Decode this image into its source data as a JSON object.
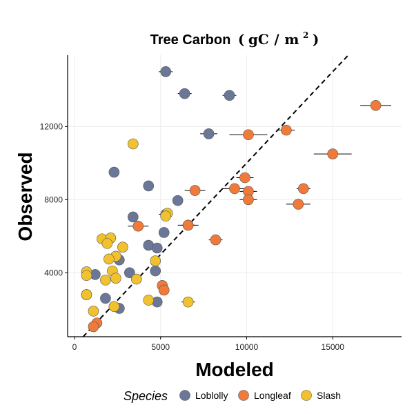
{
  "chart_data": {
    "type": "scatter",
    "title": "Tree Carbon (gC/m2)",
    "title_parts": {
      "main": "Tree Carbon",
      "open": "(",
      "unit": "gC",
      "slash": "/",
      "unit2": "m",
      "exp": "2",
      "close": ")"
    },
    "xlabel": "Modeled",
    "ylabel": "Observed",
    "xlim": [
      -400,
      19000
    ],
    "ylim": [
      500,
      15900
    ],
    "x_ticks": [
      0,
      5000,
      10000,
      15000
    ],
    "y_ticks": [
      4000,
      8000,
      12000
    ],
    "grid": true,
    "legend_title": "Species",
    "legend_position": "bottom",
    "reference_line": {
      "style": "dashed",
      "x": [
        500,
        15900
      ],
      "y": [
        500,
        15900
      ]
    },
    "series": [
      {
        "name": "Loblolly",
        "color": "#6B7799",
        "points": [
          {
            "x": 5300,
            "y": 15000,
            "xerr": 400
          },
          {
            "x": 6400,
            "y": 13800,
            "xerr": 400
          },
          {
            "x": 9000,
            "y": 13700,
            "xerr": 400
          },
          {
            "x": 7800,
            "y": 11600,
            "xerr": 500
          },
          {
            "x": 2300,
            "y": 9500,
            "xerr": 300
          },
          {
            "x": 4300,
            "y": 8750,
            "xerr": 300
          },
          {
            "x": 6000,
            "y": 7950,
            "xerr": 300
          },
          {
            "x": 3400,
            "y": 7050,
            "xerr": 300
          },
          {
            "x": 5300,
            "y": 7200,
            "xerr": 400
          },
          {
            "x": 6600,
            "y": 6600,
            "xerr": 600
          },
          {
            "x": 5200,
            "y": 6200,
            "xerr": 300
          },
          {
            "x": 4300,
            "y": 5500,
            "xerr": 300
          },
          {
            "x": 4800,
            "y": 5350,
            "xerr": 300
          },
          {
            "x": 2600,
            "y": 4700,
            "xerr": 300
          },
          {
            "x": 3200,
            "y": 4000,
            "xerr": 200
          },
          {
            "x": 4700,
            "y": 4100,
            "xerr": 200
          },
          {
            "x": 1200,
            "y": 3900,
            "xerr": 200
          },
          {
            "x": 700,
            "y": 2800,
            "xerr": 100
          },
          {
            "x": 1800,
            "y": 2600,
            "xerr": 200
          },
          {
            "x": 4800,
            "y": 2400,
            "xerr": 200
          },
          {
            "x": 2600,
            "y": 2050,
            "xerr": 200
          }
        ]
      },
      {
        "name": "Longleaf",
        "color": "#F07A3A",
        "points": [
          {
            "x": 17500,
            "y": 13150,
            "xerr": 900
          },
          {
            "x": 12300,
            "y": 11800,
            "xerr": 500
          },
          {
            "x": 10100,
            "y": 11550,
            "xerr": 1100
          },
          {
            "x": 15000,
            "y": 10500,
            "xerr": 1100
          },
          {
            "x": 9900,
            "y": 9200,
            "xerr": 500
          },
          {
            "x": 7000,
            "y": 8500,
            "xerr": 600
          },
          {
            "x": 9300,
            "y": 8600,
            "xerr": 700
          },
          {
            "x": 10100,
            "y": 8450,
            "xerr": 500
          },
          {
            "x": 13300,
            "y": 8600,
            "xerr": 400
          },
          {
            "x": 10100,
            "y": 8000,
            "xerr": 500
          },
          {
            "x": 13000,
            "y": 7750,
            "xerr": 700
          },
          {
            "x": 3700,
            "y": 6550,
            "xerr": 600
          },
          {
            "x": 6600,
            "y": 6600,
            "xerr": 400
          },
          {
            "x": 8200,
            "y": 5800,
            "xerr": 400
          },
          {
            "x": 5100,
            "y": 3300,
            "xerr": 300
          },
          {
            "x": 5200,
            "y": 3050,
            "xerr": 200
          },
          {
            "x": 1300,
            "y": 1250,
            "xerr": 200
          },
          {
            "x": 1100,
            "y": 1050,
            "xerr": 200
          }
        ]
      },
      {
        "name": "Slash",
        "color": "#F2C12E",
        "points": [
          {
            "x": 3400,
            "y": 11050,
            "xerr": 200
          },
          {
            "x": 5400,
            "y": 7250,
            "xerr": 300
          },
          {
            "x": 5300,
            "y": 7100,
            "xerr": 200
          },
          {
            "x": 1600,
            "y": 5850,
            "xerr": 200
          },
          {
            "x": 2100,
            "y": 5900,
            "xerr": 200
          },
          {
            "x": 1900,
            "y": 5600,
            "xerr": 200
          },
          {
            "x": 2800,
            "y": 5400,
            "xerr": 200
          },
          {
            "x": 2400,
            "y": 4900,
            "xerr": 200
          },
          {
            "x": 2000,
            "y": 4750,
            "xerr": 200
          },
          {
            "x": 4700,
            "y": 4650,
            "xerr": 200
          },
          {
            "x": 700,
            "y": 4050,
            "xerr": 200
          },
          {
            "x": 700,
            "y": 3850,
            "xerr": 200
          },
          {
            "x": 2200,
            "y": 4100,
            "xerr": 200
          },
          {
            "x": 2400,
            "y": 3700,
            "xerr": 200
          },
          {
            "x": 1800,
            "y": 3600,
            "xerr": 200
          },
          {
            "x": 3600,
            "y": 3650,
            "xerr": 200
          },
          {
            "x": 700,
            "y": 2800,
            "xerr": 100
          },
          {
            "x": 4300,
            "y": 2500,
            "xerr": 300
          },
          {
            "x": 6600,
            "y": 2400,
            "xerr": 400
          },
          {
            "x": 2300,
            "y": 2150,
            "xerr": 200
          },
          {
            "x": 1100,
            "y": 1900,
            "xerr": 200
          }
        ]
      }
    ]
  }
}
